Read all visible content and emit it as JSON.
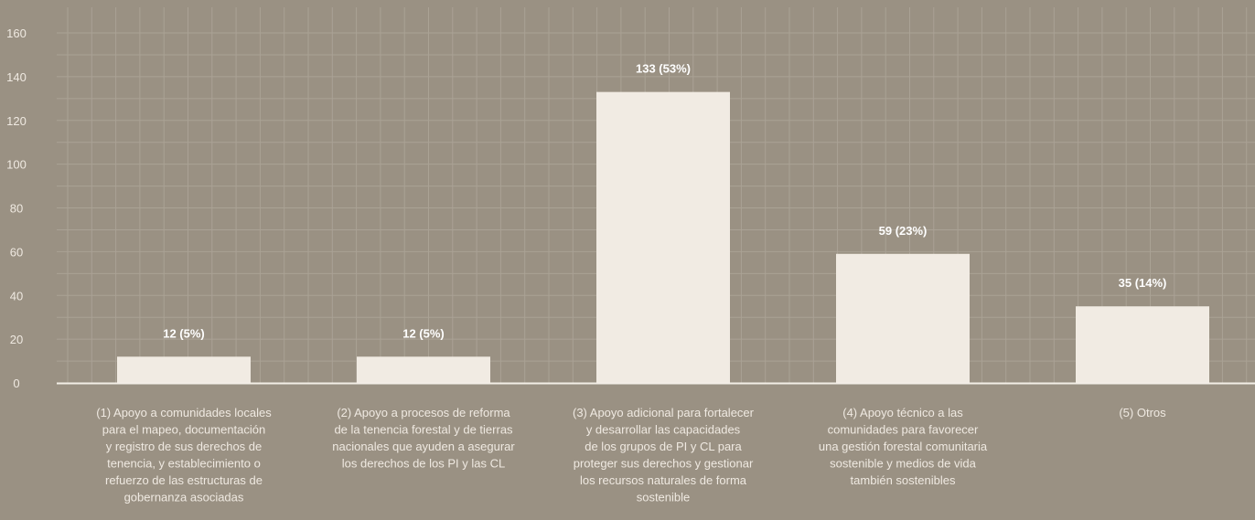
{
  "colors": {
    "background": "#9a9183",
    "bar": "#f1ebe3",
    "grid": "#aaa295",
    "axis": "#f3eee7",
    "text": "#efe9e1"
  },
  "chart_data": {
    "type": "bar",
    "title": "",
    "xlabel": "",
    "ylabel": "",
    "ylim": [
      0,
      160
    ],
    "yticks": [
      0,
      20,
      40,
      60,
      80,
      100,
      120,
      140,
      160
    ],
    "grid": true,
    "categories": [
      [
        "(1) Apoyo a comunidades locales",
        "para el mapeo, documentación",
        "y registro de sus derechos de",
        "tenencia, y establecimiento o",
        "refuerzo de las estructuras de",
        "gobernanza asociadas"
      ],
      [
        "(2) Apoyo a procesos de reforma",
        "de la tenencia forestal y de tierras",
        "nacionales que ayuden a asegurar",
        "los derechos de los PI y las CL"
      ],
      [
        "(3) Apoyo adicional para fortalecer",
        "y desarrollar las capacidades",
        "de los grupos de PI y CL para",
        "proteger sus derechos y gestionar",
        "los recursos naturales de forma",
        "sostenible"
      ],
      [
        "(4) Apoyo técnico a las",
        "comunidades para favorecer",
        "una gestión forestal comunitaria",
        "sostenible y medios de vida",
        "también sostenibles"
      ],
      [
        "(5) Otros"
      ]
    ],
    "values": [
      12,
      12,
      133,
      59,
      35
    ],
    "data_labels": [
      "12 (5%)",
      "12 (5%)",
      "133 (53%)",
      "59 (23%)",
      "35 (14%)"
    ]
  }
}
